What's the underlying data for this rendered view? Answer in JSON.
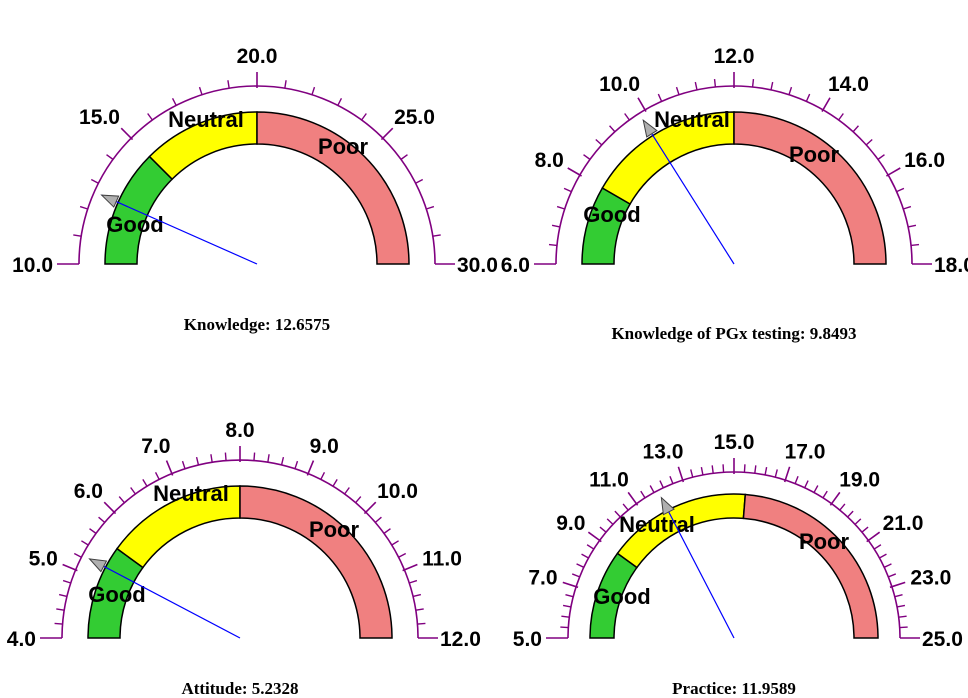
{
  "chart_data": [
    {
      "type": "gauge",
      "caption": "Knowledge: 12.6575",
      "range": [
        10,
        30
      ],
      "value": 12.6575,
      "labeled_ticks": [
        "10.0",
        "15.0",
        "20.0",
        "25.0",
        "30.0"
      ],
      "bands": [
        {
          "label": "Good",
          "from": 10,
          "to": 15,
          "color": "#33cc33"
        },
        {
          "label": "Neutral",
          "from": 15,
          "to": 20,
          "color": "#ffff00"
        },
        {
          "label": "Poor",
          "from": 20,
          "to": 30,
          "color": "#f08080"
        }
      ]
    },
    {
      "type": "gauge",
      "caption": "Knowledge of PGx testing: 9.8493",
      "range": [
        6,
        18
      ],
      "value": 9.8493,
      "labeled_ticks": [
        "6.0",
        "8.0",
        "10.0",
        "12.0",
        "14.0",
        "16.0",
        "18.0"
      ],
      "bands": [
        {
          "label": "Good",
          "from": 6,
          "to": 8,
          "color": "#33cc33"
        },
        {
          "label": "Neutral",
          "from": 8,
          "to": 12,
          "color": "#ffff00"
        },
        {
          "label": "Poor",
          "from": 12,
          "to": 18,
          "color": "#f08080"
        }
      ]
    },
    {
      "type": "gauge",
      "caption": "Attitude:  5.2328",
      "range": [
        4,
        12
      ],
      "value": 5.2328,
      "labeled_ticks": [
        "4.0",
        "5.0",
        "6.0",
        "7.0",
        "8.0",
        "9.0",
        "10.0",
        "11.0",
        "12.0"
      ],
      "bands": [
        {
          "label": "Good",
          "from": 4,
          "to": 5.6,
          "color": "#33cc33"
        },
        {
          "label": "Neutral",
          "from": 5.6,
          "to": 8,
          "color": "#ffff00"
        },
        {
          "label": "Poor",
          "from": 8,
          "to": 12,
          "color": "#f08080"
        }
      ]
    },
    {
      "type": "gauge",
      "caption": "Practice: 11.9589",
      "range": [
        5,
        25
      ],
      "value": 11.9589,
      "labeled_ticks": [
        "5.0",
        "7.0",
        "9.0",
        "11.0",
        "13.0",
        "15.0",
        "17.0",
        "19.0",
        "21.0",
        "23.0",
        "25.0"
      ],
      "bands": [
        {
          "label": "Good",
          "from": 5,
          "to": 9,
          "color": "#33cc33"
        },
        {
          "label": "Neutral",
          "from": 9,
          "to": 15.5,
          "color": "#ffff00"
        },
        {
          "label": "Poor",
          "from": 15.5,
          "to": 25,
          "color": "#f08080"
        }
      ]
    }
  ],
  "colors": {
    "scale": "#800080",
    "needle": "#0000ff",
    "needle_tip": "#b0b0b0",
    "outline": "#000000"
  }
}
